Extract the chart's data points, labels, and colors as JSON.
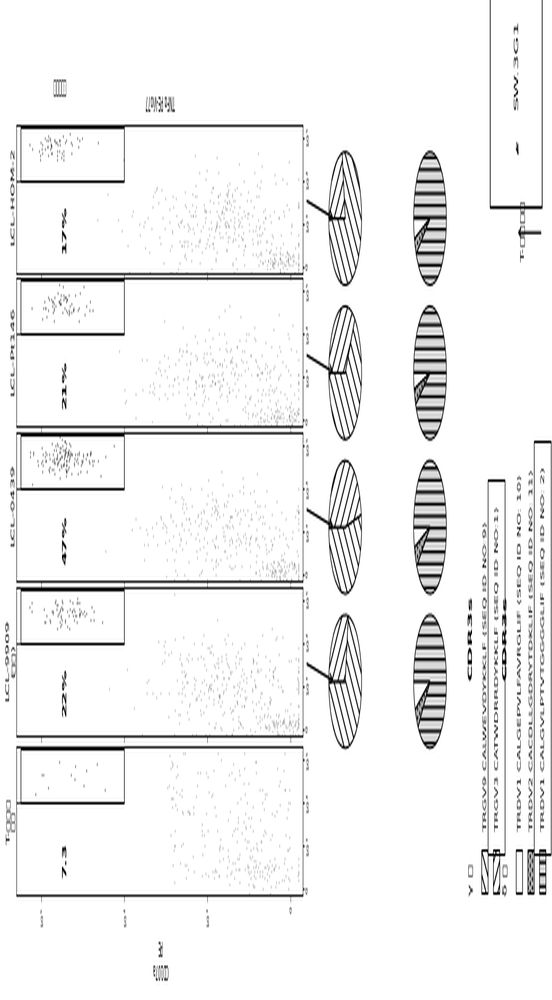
{
  "panel_labels": [
    "T-细胞系\n单独",
    "LCL-9909\n(自体)",
    "LCL-0439",
    "LCL-Pt146",
    "LCL-HOM-2"
  ],
  "percents": [
    "7.3",
    "22%",
    "47%",
    "21%",
    "17%"
  ],
  "x_axis_label": "CD107a\nPE",
  "y_axis_label": "TNFα PE-Vio77",
  "sorted_cells_label": "分选的细胞",
  "gamma_pie_data": [
    [
      0.72,
      0.28
    ],
    [
      0.53,
      0.47
    ],
    [
      0.65,
      0.35
    ],
    [
      0.78,
      0.22
    ]
  ],
  "delta_pie_data": [
    [
      0.07,
      0.05,
      0.88
    ],
    [
      0.05,
      0.05,
      0.9
    ],
    [
      0.04,
      0.04,
      0.92
    ],
    [
      0.05,
      0.04,
      0.91
    ]
  ],
  "gamma_chain_label": "γ 鑃",
  "delta_chain_label": "δ 鑃",
  "cdr3s_label": "CDR3s",
  "gamma_legend": [
    "TRGV9 CALWEVDYKKLF (SEQ ID NO:9)",
    "TRGV3 CATWDRRDYKKLF (SEQ ID NO:1)"
  ],
  "delta_legend": [
    "TRDV1 CALGEPVLFAVRGLIF (SEQ ID NO: 10)",
    "TRDV2 CACDLLGDRYTDKLIF (SEQ ID NO: 11)",
    "TRDV1 CALGVLPTVTGGGGLIF (SEQ ID NO: 2)"
  ],
  "sw3g1_label": "SW.3G1",
  "t_cell_clone_label": "T-细胞克隆"
}
